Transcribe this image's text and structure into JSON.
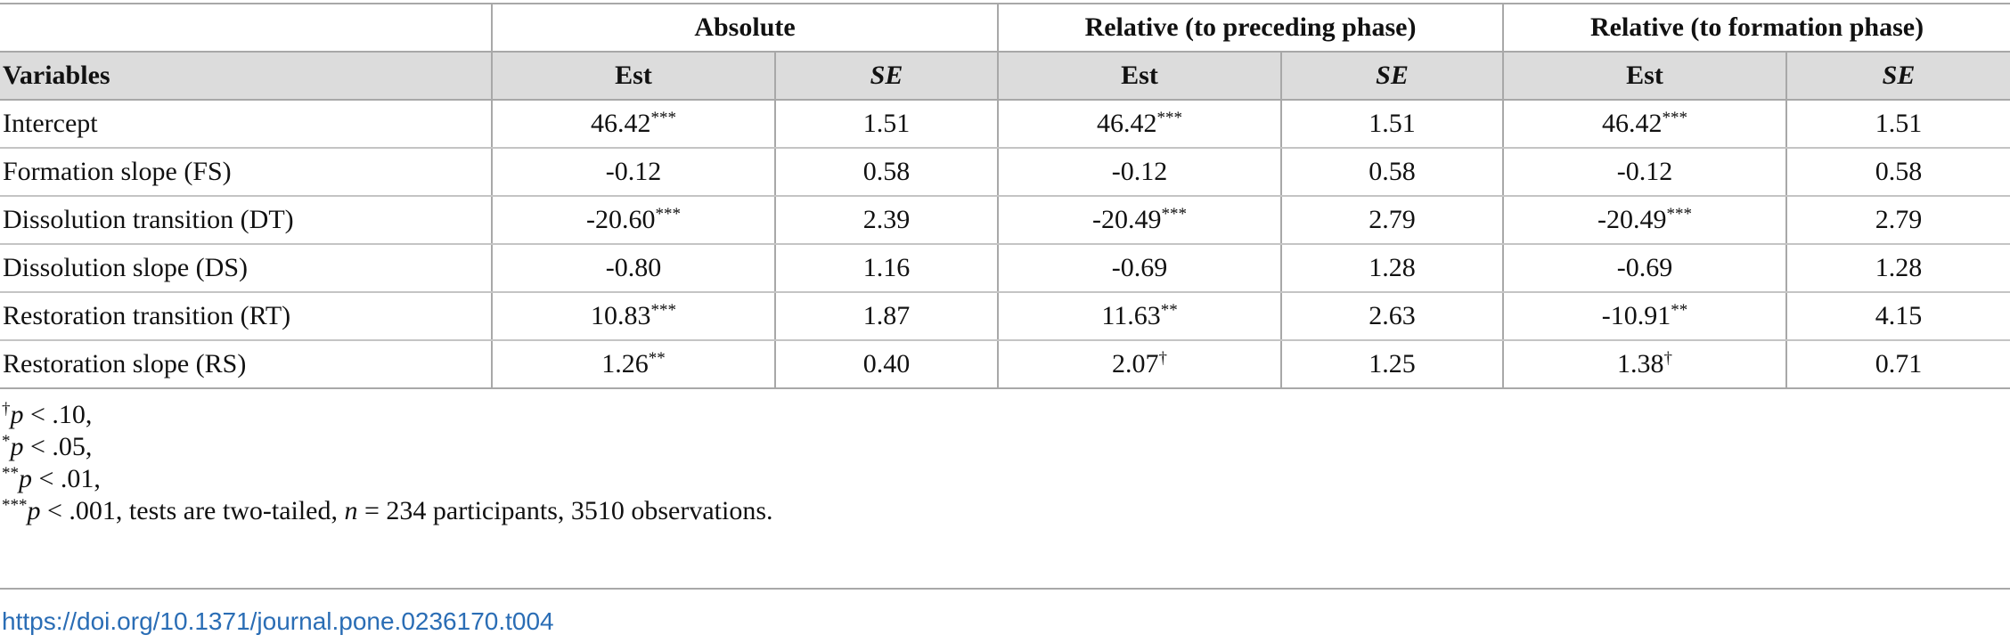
{
  "table": {
    "group_headers": [
      "Absolute",
      "Relative (to preceding phase)",
      "Relative (to formation phase)"
    ],
    "variables_header": "Variables",
    "est_label": "Est",
    "se_label": "SE",
    "rows": [
      {
        "variable": "Intercept",
        "cells": [
          {
            "v": "46.42",
            "s": "***"
          },
          {
            "v": "1.51",
            "s": ""
          },
          {
            "v": "46.42",
            "s": "***"
          },
          {
            "v": "1.51",
            "s": ""
          },
          {
            "v": "46.42",
            "s": "***"
          },
          {
            "v": "1.51",
            "s": ""
          }
        ]
      },
      {
        "variable": "Formation slope (FS)",
        "cells": [
          {
            "v": "-0.12",
            "s": ""
          },
          {
            "v": "0.58",
            "s": ""
          },
          {
            "v": "-0.12",
            "s": ""
          },
          {
            "v": "0.58",
            "s": ""
          },
          {
            "v": "-0.12",
            "s": ""
          },
          {
            "v": "0.58",
            "s": ""
          }
        ]
      },
      {
        "variable": "Dissolution transition (DT)",
        "cells": [
          {
            "v": "-20.60",
            "s": "***"
          },
          {
            "v": "2.39",
            "s": ""
          },
          {
            "v": "-20.49",
            "s": "***"
          },
          {
            "v": "2.79",
            "s": ""
          },
          {
            "v": "-20.49",
            "s": "***"
          },
          {
            "v": "2.79",
            "s": ""
          }
        ]
      },
      {
        "variable": "Dissolution slope (DS)",
        "cells": [
          {
            "v": "-0.80",
            "s": ""
          },
          {
            "v": "1.16",
            "s": ""
          },
          {
            "v": "-0.69",
            "s": ""
          },
          {
            "v": "1.28",
            "s": ""
          },
          {
            "v": "-0.69",
            "s": ""
          },
          {
            "v": "1.28",
            "s": ""
          }
        ]
      },
      {
        "variable": "Restoration transition (RT)",
        "cells": [
          {
            "v": "10.83",
            "s": "***"
          },
          {
            "v": "1.87",
            "s": ""
          },
          {
            "v": "11.63",
            "s": "**"
          },
          {
            "v": "2.63",
            "s": ""
          },
          {
            "v": "-10.91",
            "s": "**"
          },
          {
            "v": "4.15",
            "s": ""
          }
        ]
      },
      {
        "variable": "Restoration slope (RS)",
        "cells": [
          {
            "v": "1.26",
            "s": "**"
          },
          {
            "v": "0.40",
            "s": ""
          },
          {
            "v": "2.07",
            "s": "†"
          },
          {
            "v": "1.25",
            "s": ""
          },
          {
            "v": "1.38",
            "s": "†"
          },
          {
            "v": "0.71",
            "s": ""
          }
        ]
      }
    ]
  },
  "notes": [
    {
      "mark": "†",
      "p": "p",
      "rest": " < .10,"
    },
    {
      "mark": "*",
      "p": "p",
      "rest": " < .05,"
    },
    {
      "mark": "**",
      "p": "p",
      "rest": " < .01,"
    }
  ],
  "note_last": {
    "mark": "***",
    "p": "p",
    "text1": " < .001, tests are two-tailed, ",
    "n": "n",
    "text2": " = 234 participants, 3510 observations."
  },
  "doi": "https://doi.org/10.1371/journal.pone.0236170.t004"
}
